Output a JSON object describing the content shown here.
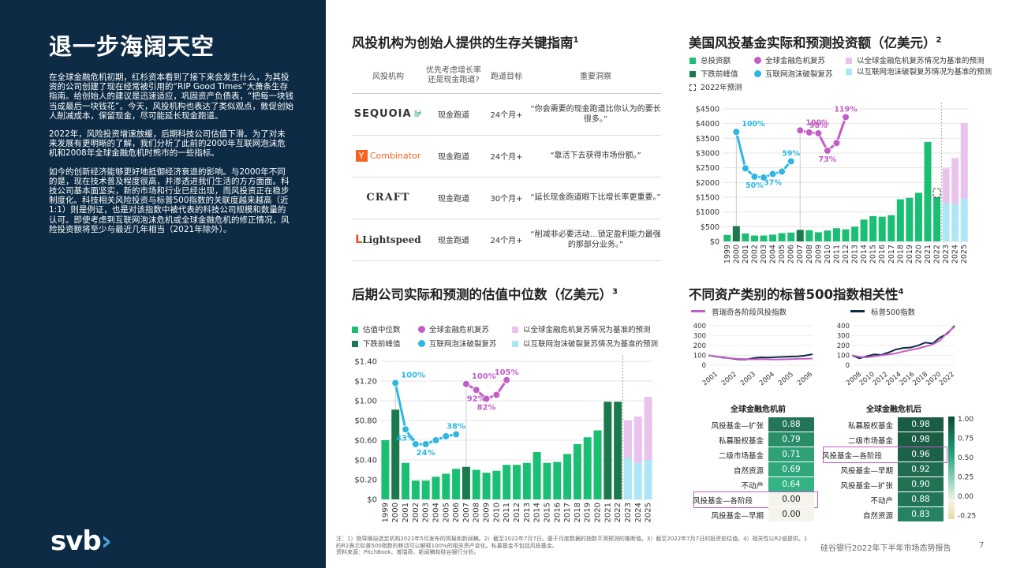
{
  "left": {
    "title": "退一步海阔天空",
    "paragraphs": [
      "在全球金融危机初期，红杉资本看到了接下来会发生什么，为其投资的公司创建了现在经常被引用的“RIP Good Times”大萧条生存指南。给创始人的建议是迅速适应，巩固资产负债表，“把每一块钱当成最后一块钱花”。今天，风投机构也表达了类似观点，敦促创始人削减成本，保留现金，尽可能延长现金跑道。",
      "2022年，风险投资增速放缓，后期科技公司估值下滑。为了对未来发展有更明晰的了解，我们分析了此前的2000年互联网泡沫危机和2008年全球金融危机时熊市的一些指标。",
      "如今的创新经济能够更好地抵御经济衰退的影响。与2000年不同的是，现在技术普及程度很高，并渗透进我们生活的方方面面。科技公司基本面坚实，新的市场和行业已经出现，而风投资正在稳步制度化。科技相关风险投资与标普500指数的关联度越来越高（近1:1）则是例证，也是对该指数中被代表的科技公司规模和数量的认可。即使考虑到互联网泡沫危机或全球金融危机的修正情况，风险投资额将至少与最近几年相当（2021年除外）。"
    ],
    "logo": "svb",
    "logo_chevron": "›"
  },
  "guide": {
    "title": "风投机构为创始人提供的生存关键指南",
    "sup": "1",
    "headers": [
      "风投机构",
      "优先考虑增长率还是现金跑道?",
      "跑道目标",
      "重要洞察"
    ],
    "rows": [
      {
        "firm": "SEQUOIA",
        "firm_mark": "⊯",
        "priority": "现金跑道",
        "runway": "24个月+",
        "insight": "“你会需要的现金跑道比你认为的要长很多。”"
      },
      {
        "firm": "Combinator",
        "firm_mark": "Y",
        "priority": "现金跑道",
        "runway": "24个月+",
        "insight": "“靠活下去获得市场份额。”"
      },
      {
        "firm": "CRAFT",
        "firm_mark": "",
        "priority": "现金跑道",
        "runway": "30个月+",
        "insight": "“延长现金跑道眼下比增长率更重要。”"
      },
      {
        "firm": "Lightspeed",
        "firm_mark": "L",
        "priority": "现金跑道",
        "runway": "24个月+",
        "insight": "“削减非必要活动…锁定盈利能力最强的那部分业务。”"
      }
    ]
  },
  "colors": {
    "green": "#1bbf73",
    "dark_green": "#1a7a4c",
    "purple": "#c45ec7",
    "light_purple": "#e9c3ec",
    "cyan": "#2fb6e3",
    "light_cyan": "#ace6f7",
    "navy": "#0d2b45"
  },
  "chart_data": [
    {
      "type": "bar",
      "title": "美国风投基金实际和预测投资额（亿美元）",
      "sup": "2",
      "legend": [
        "总投资额",
        "全球金融危机复苏",
        "以全球金融危机复苏情况为基准的预测",
        "下跌前峰值",
        "互联网泡沫破裂复苏",
        "以互联网泡沫破裂复苏情况为基准的预测",
        "2022年预测"
      ],
      "categories": [
        "1999",
        "2000",
        "2001",
        "2002",
        "2003",
        "2004",
        "2005",
        "2006",
        "2007",
        "2008",
        "2009",
        "2010",
        "2011",
        "2012",
        "2013",
        "2014",
        "2015",
        "2016",
        "2017",
        "2018",
        "2019",
        "2020",
        "2021",
        "2022",
        "2023",
        "2024",
        "2025"
      ],
      "values": [
        220,
        520,
        270,
        200,
        200,
        230,
        280,
        300,
        390,
        380,
        310,
        370,
        450,
        410,
        500,
        740,
        860,
        840,
        890,
        1430,
        1480,
        1650,
        3380,
        1500,
        null,
        null,
        null
      ],
      "peak_years": [
        "2000",
        "2007"
      ],
      "forecast_2022": 1790,
      "gfc_forecast": {
        "2023": 2480,
        "2024": 2830,
        "2025": 4020
      },
      "dotcom_forecast": {
        "2023": 1310,
        "2024": 1270,
        "2025": 1450
      },
      "gfc_recovery": [
        {
          "x": "2007",
          "y": 3770,
          "label": "100%"
        },
        {
          "x": "2008",
          "y": 3700,
          "label": ""
        },
        {
          "x": "2009",
          "y": 3670,
          "label": "98%"
        },
        {
          "x": "2010",
          "y": 3080,
          "label": "73%"
        },
        {
          "x": "2011",
          "y": 3340,
          "label": ""
        },
        {
          "x": "2012",
          "y": 4220,
          "label": "119%"
        }
      ],
      "dotcom_recovery": [
        {
          "x": "2000",
          "y": 3720,
          "label": "100%"
        },
        {
          "x": "2001",
          "y": 2480,
          "label": ""
        },
        {
          "x": "2002",
          "y": 2200,
          "label": "50%"
        },
        {
          "x": "2003",
          "y": 2170,
          "label": ""
        },
        {
          "x": "2004",
          "y": 2290,
          "label": "37%"
        },
        {
          "x": "2005",
          "y": 2370,
          "label": ""
        },
        {
          "x": "2006",
          "y": 2720,
          "label": "59%"
        }
      ],
      "yticks": [
        "$0",
        "$500",
        "$1000",
        "$1500",
        "$2000",
        "$2500",
        "$3000",
        "$3500",
        "$4000",
        "$4500"
      ],
      "ylim": [
        0,
        4500
      ]
    },
    {
      "type": "bar",
      "title": "后期公司实际和预测的估值中位数（亿美元）",
      "sup": "3",
      "legend": [
        "估值中位数",
        "全球金融危机复苏",
        "以全球金融危机复苏情况为基准的预测",
        "下跌前峰值",
        "互联网泡沫破裂复苏",
        "以互联网泡沫破裂复苏情况为基准的预测"
      ],
      "categories": [
        "1999",
        "2000",
        "2001",
        "2002",
        "2003",
        "2004",
        "2005",
        "2006",
        "2007",
        "2008",
        "2009",
        "2010",
        "2011",
        "2012",
        "2013",
        "2014",
        "2015",
        "2016",
        "2017",
        "2018",
        "2019",
        "2020",
        "2021",
        "2022",
        "2023",
        "2024",
        "2025"
      ],
      "values": [
        0.6,
        0.91,
        0.37,
        0.19,
        0.19,
        0.23,
        0.26,
        0.31,
        0.33,
        0.3,
        0.27,
        0.29,
        0.35,
        0.35,
        0.37,
        0.48,
        0.37,
        0.38,
        0.46,
        0.56,
        0.63,
        0.7,
        0.99,
        0.99,
        null,
        null,
        null
      ],
      "peak_years": [
        "2000",
        "2007",
        "2021",
        "2022"
      ],
      "gfc_forecast": {
        "2023": 0.8,
        "2024": 0.84,
        "2025": 1.04
      },
      "dotcom_forecast": {
        "2023": 0.42,
        "2024": 0.37,
        "2025": 0.4
      },
      "gfc_recovery": [
        {
          "x": "2007",
          "y": 1.17,
          "label": "100%"
        },
        {
          "x": "2008",
          "y": 1.11,
          "label": "92%"
        },
        {
          "x": "2009",
          "y": 1.02,
          "label": "82%"
        },
        {
          "x": "2010",
          "y": 1.06,
          "label": ""
        },
        {
          "x": "2011",
          "y": 1.21,
          "label": "105%"
        }
      ],
      "dotcom_recovery": [
        {
          "x": "2000",
          "y": 1.18,
          "label": "100%"
        },
        {
          "x": "2001",
          "y": 0.71,
          "label": "43%"
        },
        {
          "x": "2002",
          "y": 0.56,
          "label": ""
        },
        {
          "x": "2003",
          "y": 0.56,
          "label": "24%"
        },
        {
          "x": "2004",
          "y": 0.6,
          "label": ""
        },
        {
          "x": "2005",
          "y": 0.64,
          "label": ""
        },
        {
          "x": "2006",
          "y": 0.66,
          "label": "38%"
        }
      ],
      "yticks": [
        "$0",
        "$0.20",
        "$0.40",
        "$0.60",
        "$0.80",
        "$1.00",
        "$1.20",
        "$1.40"
      ],
      "ylim": [
        0,
        1.4
      ]
    },
    {
      "type": "line",
      "title": "不同资产类别的标普500指数相关性",
      "sup": "4",
      "legend": [
        "普瑞奇各阶段风投指数",
        "标普500指数"
      ],
      "panel_a": {
        "xticks": [
          "2001",
          "2002",
          "2003",
          "2004",
          "2005",
          "2006"
        ],
        "yticks": [
          "0",
          "100",
          "200",
          "300",
          "400"
        ],
        "vc_index": [
          100,
          90,
          75,
          72,
          65,
          62,
          60,
          62,
          60,
          58,
          60,
          62,
          65,
          66,
          68
        ],
        "sp500": [
          100,
          88,
          80,
          70,
          60,
          58,
          72,
          80,
          78,
          82,
          85,
          88,
          90,
          98,
          112
        ]
      },
      "panel_b": {
        "xticks": [
          "2008",
          "2010",
          "2012",
          "2014",
          "2016",
          "2018",
          "2020",
          "2022"
        ],
        "yticks": [
          "0",
          "100",
          "200",
          "300",
          "400"
        ],
        "vc_index": [
          100,
          85,
          80,
          90,
          100,
          110,
          120,
          140,
          155,
          170,
          190,
          210,
          250,
          330,
          390
        ],
        "sp500": [
          100,
          70,
          90,
          110,
          105,
          130,
          160,
          175,
          180,
          200,
          230,
          220,
          280,
          320,
          400
        ]
      }
    },
    {
      "type": "heatmap",
      "pre_title": "全球金融危机前",
      "post_title": "全球金融危机后",
      "pre": [
        {
          "label": "风投基金—扩张",
          "value": "0.88"
        },
        {
          "label": "私募股权基金",
          "value": "0.79"
        },
        {
          "label": "二级市场基金",
          "value": "0.71"
        },
        {
          "label": "自然资源",
          "value": "0.69"
        },
        {
          "label": "不动产",
          "value": "0.64"
        },
        {
          "label": "风投基金—各阶段",
          "value": "0.00",
          "highlight": true
        },
        {
          "label": "风投基金—早期",
          "value": "0.00"
        }
      ],
      "post": [
        {
          "label": "私募股权基金",
          "value": "0.98"
        },
        {
          "label": "二级市场基金",
          "value": "0.98"
        },
        {
          "label": "风投基金—各阶段",
          "value": "0.96",
          "highlight": true
        },
        {
          "label": "风投基金—早期",
          "value": "0.92"
        },
        {
          "label": "风投基金—扩张",
          "value": "0.90"
        },
        {
          "label": "不动产",
          "value": "0.88"
        },
        {
          "label": "自然资源",
          "value": "0.83"
        }
      ],
      "scale_ticks": [
        "1.00",
        "0.75",
        "0.50",
        "0.25",
        "0.00",
        "-0.25"
      ]
    }
  ],
  "footer": {
    "notes": "注：1）指导摘自选定机构2022年5月发布的简报和新闻稿。2）截至2022年7月7日。基于月度数据的指数平滑预测的推断值。3）截至2022年7月7日的投资前估值。4）相关性以R2值提供。1的R2表示标普500指数的移动可以解释100%的相关资产变化。私募基金不包括风投基金。",
    "source": "资料来源：PitchBook、普瑞奇、新闻稿和硅谷银行分析。",
    "report": "硅谷银行2022年下半年市场态势报告",
    "page": "7"
  }
}
